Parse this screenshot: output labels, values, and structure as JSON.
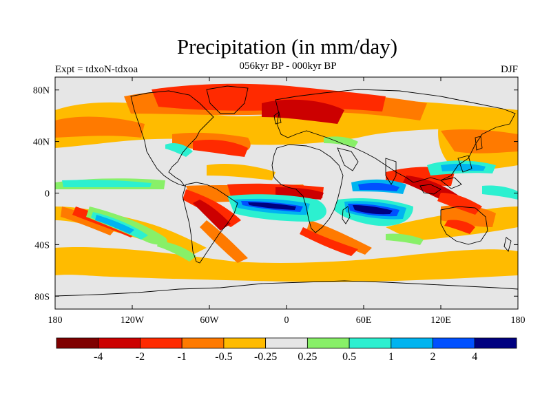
{
  "title": "Precipitation (in mm/day)",
  "subtitle": "056kyr BP - 000kyr BP",
  "left_label": "Expt = tdxoN-tdxoa",
  "right_label": "DJF",
  "colors": {
    "background_land": "#e6e6e6",
    "frame": "#000000",
    "coast": "#000000"
  },
  "map": {
    "lon_range": [
      -180,
      180
    ],
    "lat_range": [
      -90,
      90
    ],
    "lon_ticks": [
      {
        "value": -180,
        "label": "180"
      },
      {
        "value": -120,
        "label": "120W"
      },
      {
        "value": -60,
        "label": "60W"
      },
      {
        "value": 0,
        "label": "0"
      },
      {
        "value": 60,
        "label": "60E"
      },
      {
        "value": 120,
        "label": "120E"
      },
      {
        "value": 180,
        "label": "180"
      }
    ],
    "lat_ticks": [
      {
        "value": 80,
        "label": "80N"
      },
      {
        "value": 40,
        "label": "40N"
      },
      {
        "value": 0,
        "label": "0"
      },
      {
        "value": -40,
        "label": "40S"
      },
      {
        "value": -80,
        "label": "80S"
      }
    ]
  },
  "colorbar": {
    "colors": [
      "#7f0000",
      "#cc0000",
      "#ff2a00",
      "#ff7a00",
      "#ffbb00",
      "#e6e6e6",
      "#88f068",
      "#2cf0d0",
      "#00b4f0",
      "#0050ff",
      "#000080"
    ],
    "labels": [
      "-4",
      "-2",
      "-1",
      "-0.5",
      "-0.25",
      "0.25",
      "0.5",
      "1",
      "2",
      "4"
    ]
  }
}
